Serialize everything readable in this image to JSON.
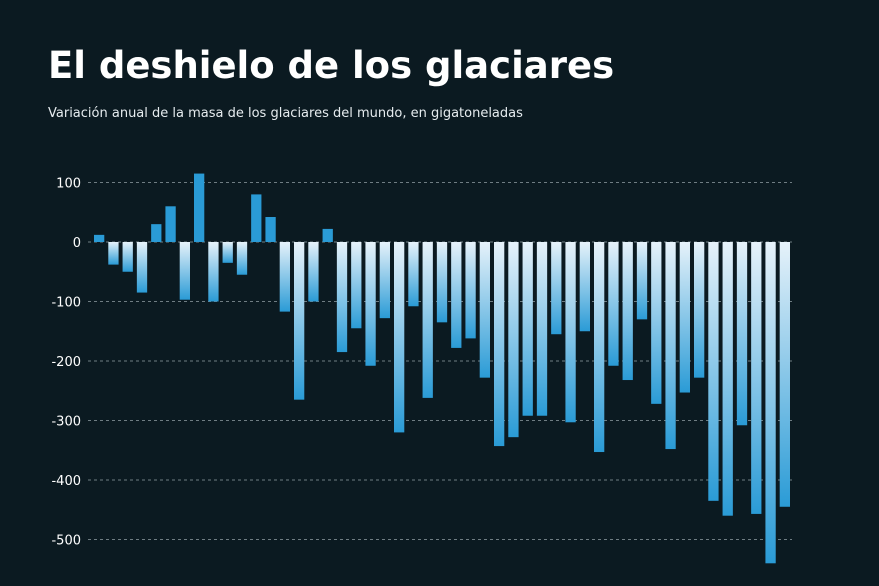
{
  "title": "El deshielo de los glaciares",
  "subtitle": "Variación anual de la masa de los glaciares del mundo, en gigatoneladas",
  "colors": {
    "background": "#0b1a21",
    "positive_bar": "#2a9bd6",
    "negative_bar_top": "#e6f2fa",
    "negative_bar_bottom": "#2a9bd6",
    "grid": "#9aa7ad"
  },
  "chart_data": {
    "type": "bar",
    "title": "El deshielo de los glaciares",
    "subtitle": "Variación anual de la masa de los glaciares del mundo, en gigatoneladas",
    "xlabel": "",
    "ylabel": "",
    "ylim": [
      -540,
      120
    ],
    "yticks": [
      100,
      0,
      -100,
      -200,
      -300,
      -400,
      -500
    ],
    "ytick_labels": [
      "100",
      "0",
      "-100",
      "-200",
      "-300",
      "-400",
      "-500"
    ],
    "grid": "horizontal-dashed",
    "legend": "none",
    "values": [
      12,
      -38,
      -50,
      -85,
      30,
      60,
      -97,
      115,
      -100,
      -35,
      -55,
      80,
      42,
      -117,
      -265,
      -100,
      22,
      -185,
      -145,
      -208,
      -128,
      -320,
      -108,
      -262,
      -135,
      -178,
      -162,
      -228,
      -343,
      -328,
      -292,
      -292,
      -155,
      -303,
      -150,
      -353,
      -208,
      -232,
      -130,
      -272,
      -348,
      -253,
      -228,
      -435,
      -460,
      -308,
      -457,
      -540,
      -445
    ]
  }
}
